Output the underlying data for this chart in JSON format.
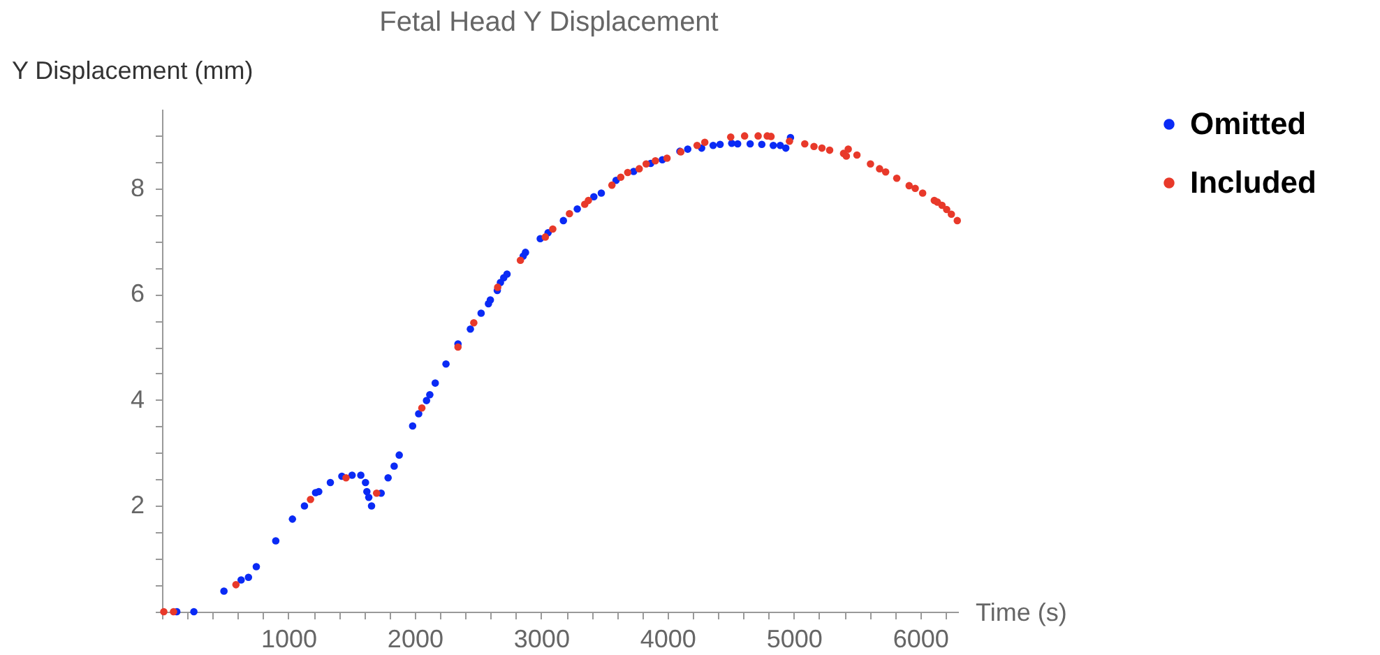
{
  "chart_data": {
    "type": "scatter",
    "title": "Fetal Head Y Displacement",
    "xlabel": "Time (s)",
    "ylabel": "Y Displacement (mm)",
    "xlim": [
      0,
      6300
    ],
    "ylim": [
      0,
      9.5
    ],
    "xticks": [
      {
        "value": 0,
        "label": null
      },
      {
        "value": 200,
        "label": null
      },
      {
        "value": 400,
        "label": null
      },
      {
        "value": 600,
        "label": null
      },
      {
        "value": 800,
        "label": null
      },
      1000,
      {
        "value": 1200,
        "label": null
      },
      {
        "value": 1400,
        "label": null
      },
      {
        "value": 1600,
        "label": null
      },
      {
        "value": 1800,
        "label": null
      },
      2000,
      {
        "value": 2200,
        "label": null
      },
      {
        "value": 2400,
        "label": null
      },
      {
        "value": 2600,
        "label": null
      },
      {
        "value": 2800,
        "label": null
      },
      3000,
      {
        "value": 3200,
        "label": null
      },
      {
        "value": 3400,
        "label": null
      },
      {
        "value": 3600,
        "label": null
      },
      {
        "value": 3800,
        "label": null
      },
      4000,
      {
        "value": 4200,
        "label": null
      },
      {
        "value": 4400,
        "label": null
      },
      {
        "value": 4600,
        "label": null
      },
      {
        "value": 4800,
        "label": null
      },
      5000,
      {
        "value": 5200,
        "label": null
      },
      {
        "value": 5400,
        "label": null
      },
      {
        "value": 5600,
        "label": null
      },
      {
        "value": 5800,
        "label": null
      },
      6000,
      {
        "value": 6200,
        "label": null
      }
    ],
    "yticks": [
      {
        "value": 0,
        "label": null
      },
      {
        "value": 0.5,
        "label": null
      },
      {
        "value": 1,
        "label": null
      },
      {
        "value": 1.5,
        "label": null
      },
      2,
      {
        "value": 2.5,
        "label": null
      },
      {
        "value": 3,
        "label": null
      },
      {
        "value": 3.5,
        "label": null
      },
      4,
      {
        "value": 4.5,
        "label": null
      },
      {
        "value": 5,
        "label": null
      },
      {
        "value": 5.5,
        "label": null
      },
      6,
      {
        "value": 6.5,
        "label": null
      },
      {
        "value": 7,
        "label": null
      },
      {
        "value": 7.5,
        "label": null
      },
      8,
      {
        "value": 8.5,
        "label": null
      },
      {
        "value": 9,
        "label": null
      }
    ],
    "grid": false,
    "legend": "right",
    "marker": "circle",
    "series": [
      {
        "name": "Omitted",
        "color": "#0a2af5",
        "x": [
          117,
          252,
          490,
          626,
          684,
          746,
          900,
          1032,
          1127,
          1215,
          1240,
          1332,
          1423,
          1504,
          1573,
          1610,
          1621,
          1636,
          1658,
          1734,
          1789,
          1837,
          1877,
          1983,
          2031,
          2093,
          2119,
          2162,
          2247,
          2342,
          2440,
          2525,
          2583,
          2598,
          2653,
          2678,
          2704,
          2730,
          2858,
          2876,
          2993,
          3055,
          3176,
          3286,
          3417,
          3476,
          3593,
          3732,
          3867,
          3959,
          4098,
          4160,
          4270,
          4361,
          4416,
          4508,
          4555,
          4654,
          4746,
          4837,
          4892,
          4936,
          4973
        ],
        "values": [
          0,
          0,
          0.39,
          0.6,
          0.65,
          0.85,
          1.34,
          1.75,
          2.0,
          2.25,
          2.27,
          2.44,
          2.56,
          2.58,
          2.58,
          2.44,
          2.27,
          2.16,
          2.0,
          2.24,
          2.53,
          2.75,
          2.96,
          3.51,
          3.74,
          3.99,
          4.1,
          4.32,
          4.68,
          5.06,
          5.34,
          5.64,
          5.82,
          5.89,
          6.07,
          6.22,
          6.31,
          6.38,
          6.72,
          6.79,
          7.05,
          7.16,
          7.39,
          7.61,
          7.84,
          7.91,
          8.15,
          8.32,
          8.47,
          8.54,
          8.7,
          8.74,
          8.76,
          8.81,
          8.83,
          8.85,
          8.84,
          8.84,
          8.83,
          8.81,
          8.81,
          8.76,
          8.96
        ]
      },
      {
        "name": "Included",
        "color": "#e8392a",
        "x": [
          14,
          91,
          585,
          1175,
          1456,
          1698,
          2056,
          2342,
          2467,
          2656,
          2836,
          3033,
          3092,
          3224,
          3345,
          3374,
          3560,
          3630,
          3685,
          3776,
          3831,
          3904,
          3996,
          4105,
          4234,
          4295,
          4500,
          4610,
          4717,
          4789,
          4819,
          4965,
          5086,
          5159,
          5222,
          5283,
          5393,
          5415,
          5430,
          5499,
          5606,
          5678,
          5726,
          5814,
          5912,
          5960,
          6019,
          6111,
          6136,
          6172,
          6209,
          6246,
          6293
        ],
        "values": [
          0,
          0,
          0.51,
          2.12,
          2.53,
          2.24,
          3.85,
          5.0,
          5.46,
          6.13,
          6.64,
          7.08,
          7.23,
          7.52,
          7.7,
          7.77,
          8.06,
          8.21,
          8.3,
          8.37,
          8.46,
          8.52,
          8.57,
          8.69,
          8.81,
          8.87,
          8.97,
          8.99,
          8.99,
          8.99,
          8.98,
          8.89,
          8.84,
          8.79,
          8.76,
          8.72,
          8.66,
          8.61,
          8.74,
          8.63,
          8.46,
          8.37,
          8.31,
          8.19,
          8.05,
          8.0,
          7.91,
          7.77,
          7.74,
          7.68,
          7.6,
          7.51,
          7.39
        ]
      }
    ]
  }
}
